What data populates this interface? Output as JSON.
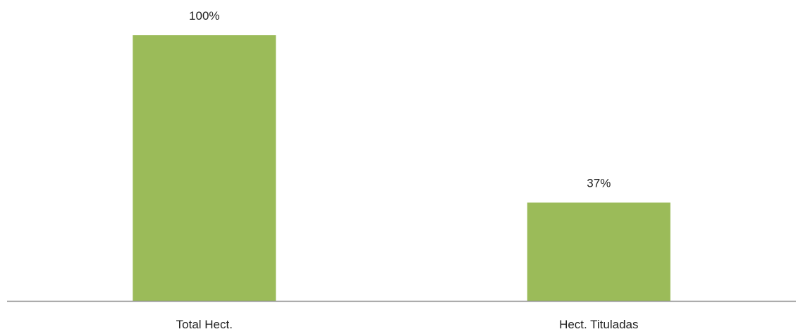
{
  "chart_data": {
    "type": "bar",
    "title": "",
    "xlabel": "",
    "ylabel": "",
    "categories": [
      "Total Hect.",
      "Hect. Tituladas"
    ],
    "values": [
      100,
      37
    ],
    "data_labels": [
      "100%",
      "37%"
    ],
    "ylim": [
      0,
      100
    ],
    "grid": false,
    "legend": "none",
    "colors": {
      "bar": "#9bbb59",
      "axis": "#8c8c8c",
      "text": "#222222"
    }
  }
}
